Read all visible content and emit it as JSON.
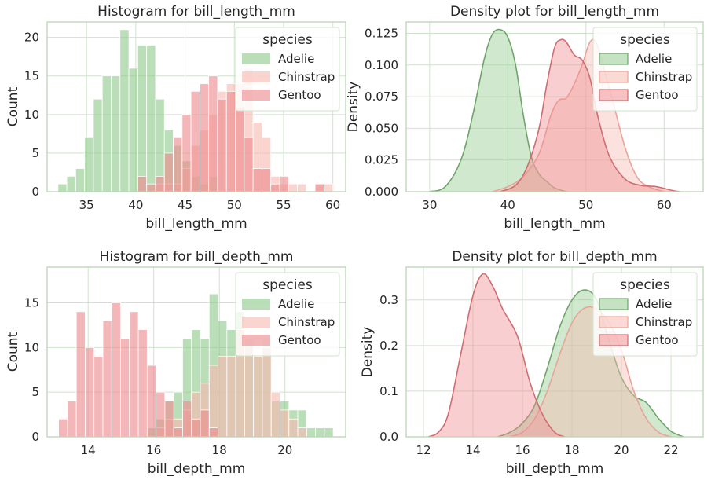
{
  "colors": {
    "Adelie": "#8fc98b",
    "Chinstrap": "#f7b9b0",
    "Gentoo": "#ee8a8e",
    "Adelie_line": "#6fa56b",
    "Chinstrap_line": "#e8a49a",
    "Gentoo_line": "#d06d72",
    "grid": "#cfe3cc",
    "frame": "#b9d6b5"
  },
  "chart_data": [
    {
      "type": "bar",
      "kind": "histogram",
      "title": "Histogram for bill_length_mm",
      "xlabel": "bill_length_mm",
      "ylabel": "Count",
      "xlim": [
        31,
        61.3
      ],
      "ylim": [
        0,
        22
      ],
      "xticks": [
        35,
        40,
        45,
        50,
        55,
        60
      ],
      "yticks": [
        0,
        5,
        10,
        15,
        20
      ],
      "bin_edges": [
        32.1,
        33.0,
        33.9,
        34.8,
        35.7,
        36.6,
        37.5,
        38.4,
        39.3,
        40.2,
        41.1,
        42.0,
        42.9,
        43.8,
        44.7,
        45.6,
        46.5,
        47.4,
        48.3,
        49.2,
        50.1,
        51.0,
        51.9,
        52.8,
        53.7,
        54.6,
        55.5,
        56.4,
        57.3,
        58.2,
        59.1,
        60.0
      ],
      "legend": {
        "title": "species",
        "entries": [
          "Adelie",
          "Chinstrap",
          "Gentoo"
        ],
        "position": "top-right"
      },
      "series": [
        {
          "name": "Adelie",
          "values": [
            1,
            2,
            3,
            7,
            12,
            15,
            15,
            21,
            16,
            19,
            19,
            12,
            8,
            6,
            4,
            2,
            1,
            2,
            0,
            0,
            0,
            0,
            0,
            0,
            0,
            0,
            0,
            0,
            0,
            0,
            0
          ]
        },
        {
          "name": "Chinstrap",
          "values": [
            0,
            0,
            0,
            0,
            0,
            0,
            0,
            0,
            0,
            0,
            0,
            1,
            1,
            1,
            3,
            6,
            8,
            10,
            13,
            14,
            14,
            16,
            9,
            7,
            2,
            1,
            1,
            1,
            0,
            1,
            1
          ]
        },
        {
          "name": "Gentoo",
          "values": [
            0,
            0,
            0,
            0,
            0,
            0,
            0,
            0,
            0,
            2,
            1,
            2,
            5,
            7,
            10,
            13,
            14,
            15,
            12,
            13,
            11,
            7,
            3,
            3,
            1,
            2,
            0,
            0,
            0,
            1,
            0
          ]
        }
      ]
    },
    {
      "type": "area",
      "kind": "density",
      "title": "Density plot for bill_length_mm",
      "xlabel": "bill_length_mm",
      "ylabel": "Density",
      "xlim": [
        27,
        65
      ],
      "ylim": [
        0,
        0.134
      ],
      "xticks": [
        30,
        40,
        50,
        60
      ],
      "yticks": [
        0.0,
        0.025,
        0.05,
        0.075,
        0.1,
        0.125
      ],
      "ytick_labels": [
        "0.000",
        "0.025",
        "0.050",
        "0.075",
        "0.100",
        "0.125"
      ],
      "legend": {
        "title": "species",
        "entries": [
          "Adelie",
          "Chinstrap",
          "Gentoo"
        ],
        "position": "top-right"
      },
      "series": [
        {
          "name": "Adelie",
          "points": [
            [
              30,
              0
            ],
            [
              32,
              0.004
            ],
            [
              34,
              0.025
            ],
            [
              35.5,
              0.06
            ],
            [
              37,
              0.105
            ],
            [
              38,
              0.124
            ],
            [
              39,
              0.128
            ],
            [
              40,
              0.122
            ],
            [
              41,
              0.1
            ],
            [
              42,
              0.06
            ],
            [
              43,
              0.028
            ],
            [
              44,
              0.014
            ],
            [
              45,
              0.008
            ],
            [
              46,
              0.003
            ],
            [
              47.5,
              0
            ]
          ]
        },
        {
          "name": "Chinstrap",
          "points": [
            [
              38,
              0
            ],
            [
              40,
              0.004
            ],
            [
              42,
              0.012
            ],
            [
              44,
              0.03
            ],
            [
              45.5,
              0.06
            ],
            [
              46.5,
              0.072
            ],
            [
              47.5,
              0.074
            ],
            [
              48.5,
              0.085
            ],
            [
              49.5,
              0.1
            ],
            [
              50.5,
              0.118
            ],
            [
              51.3,
              0.118
            ],
            [
              52.2,
              0.1
            ],
            [
              53.5,
              0.07
            ],
            [
              55,
              0.035
            ],
            [
              56.5,
              0.012
            ],
            [
              58,
              0.004
            ],
            [
              60,
              0
            ]
          ]
        },
        {
          "name": "Gentoo",
          "points": [
            [
              39,
              0
            ],
            [
              41,
              0.005
            ],
            [
              42.5,
              0.02
            ],
            [
              44,
              0.05
            ],
            [
              45,
              0.085
            ],
            [
              46,
              0.114
            ],
            [
              46.8,
              0.12
            ],
            [
              47.5,
              0.118
            ],
            [
              48.5,
              0.108
            ],
            [
              49.5,
              0.104
            ],
            [
              50.5,
              0.09
            ],
            [
              51.5,
              0.06
            ],
            [
              53,
              0.028
            ],
            [
              55,
              0.01
            ],
            [
              57,
              0.005
            ],
            [
              59,
              0.004
            ],
            [
              61,
              0.001
            ],
            [
              62,
              0
            ]
          ]
        }
      ]
    },
    {
      "type": "bar",
      "kind": "histogram",
      "title": "Histogram for bill_depth_mm",
      "xlabel": "bill_depth_mm",
      "ylabel": "Count",
      "xlim": [
        12.75,
        21.85
      ],
      "ylim": [
        0,
        19
      ],
      "xticks": [
        14,
        16,
        18,
        20
      ],
      "yticks": [
        0,
        5,
        10,
        15
      ],
      "bin_edges": [
        13.1,
        13.37,
        13.64,
        13.91,
        14.18,
        14.45,
        14.72,
        14.99,
        15.26,
        15.53,
        15.8,
        16.07,
        16.34,
        16.61,
        16.88,
        17.15,
        17.42,
        17.69,
        17.96,
        18.23,
        18.5,
        18.77,
        19.04,
        19.31,
        19.58,
        19.85,
        20.12,
        20.39,
        20.66,
        20.93,
        21.2,
        21.47
      ],
      "legend": {
        "title": "species",
        "entries": [
          "Adelie",
          "Chinstrap",
          "Gentoo"
        ],
        "position": "top-right"
      },
      "series": [
        {
          "name": "Adelie",
          "values": [
            0,
            0,
            0,
            0,
            0,
            0,
            0,
            0,
            0,
            0,
            1,
            2,
            4,
            5,
            11,
            12,
            11,
            16,
            13,
            12,
            14,
            11,
            9,
            11,
            4,
            4,
            3,
            3,
            1,
            1,
            1
          ]
        },
        {
          "name": "Chinstrap",
          "values": [
            0,
            0,
            0,
            0,
            0,
            0,
            0,
            0,
            0,
            0,
            0,
            1,
            2,
            2,
            3,
            5,
            6,
            8,
            9,
            9,
            12,
            11,
            9,
            10,
            5,
            3,
            2,
            1,
            0,
            0,
            0
          ]
        },
        {
          "name": "Gentoo",
          "values": [
            2,
            4,
            14,
            10,
            9,
            13,
            15,
            11,
            14,
            12,
            8,
            5,
            4,
            1,
            4,
            2,
            3,
            1,
            0,
            0,
            0,
            0,
            0,
            0,
            0,
            0,
            0,
            0,
            0,
            0,
            0
          ]
        }
      ]
    },
    {
      "type": "area",
      "kind": "density",
      "title": "Density plot for bill_depth_mm",
      "xlabel": "bill_depth_mm",
      "ylabel": "Density",
      "xlim": [
        11.3,
        23.3
      ],
      "ylim": [
        0,
        0.372
      ],
      "xticks": [
        12,
        14,
        16,
        18,
        20,
        22
      ],
      "yticks": [
        0.0,
        0.1,
        0.2,
        0.3
      ],
      "ytick_labels": [
        "0.0",
        "0.1",
        "0.2",
        "0.3"
      ],
      "legend": {
        "title": "species",
        "entries": [
          "Adelie",
          "Chinstrap",
          "Gentoo"
        ],
        "position": "top-right"
      },
      "series": [
        {
          "name": "Adelie",
          "points": [
            [
              15,
              0
            ],
            [
              15.5,
              0.01
            ],
            [
              16,
              0.03
            ],
            [
              16.5,
              0.07
            ],
            [
              17,
              0.15
            ],
            [
              17.5,
              0.24
            ],
            [
              18,
              0.3
            ],
            [
              18.5,
              0.322
            ],
            [
              19,
              0.3
            ],
            [
              19.5,
              0.21
            ],
            [
              20,
              0.13
            ],
            [
              20.5,
              0.09
            ],
            [
              21,
              0.075
            ],
            [
              21.5,
              0.04
            ],
            [
              22,
              0.012
            ],
            [
              22.5,
              0
            ]
          ]
        },
        {
          "name": "Chinstrap",
          "points": [
            [
              15.5,
              0
            ],
            [
              16,
              0.01
            ],
            [
              16.5,
              0.04
            ],
            [
              17,
              0.1
            ],
            [
              17.5,
              0.18
            ],
            [
              18,
              0.25
            ],
            [
              18.5,
              0.282
            ],
            [
              19,
              0.28
            ],
            [
              19.5,
              0.25
            ],
            [
              20,
              0.19
            ],
            [
              20.5,
              0.1
            ],
            [
              21,
              0.04
            ],
            [
              21.5,
              0.01
            ],
            [
              22,
              0
            ]
          ]
        },
        {
          "name": "Gentoo",
          "points": [
            [
              12.2,
              0
            ],
            [
              12.6,
              0.01
            ],
            [
              13,
              0.05
            ],
            [
              13.5,
              0.18
            ],
            [
              14,
              0.31
            ],
            [
              14.4,
              0.357
            ],
            [
              14.8,
              0.33
            ],
            [
              15.2,
              0.28
            ],
            [
              15.8,
              0.22
            ],
            [
              16.3,
              0.12
            ],
            [
              16.8,
              0.05
            ],
            [
              17.3,
              0.01
            ],
            [
              17.7,
              0
            ]
          ]
        }
      ]
    }
  ]
}
